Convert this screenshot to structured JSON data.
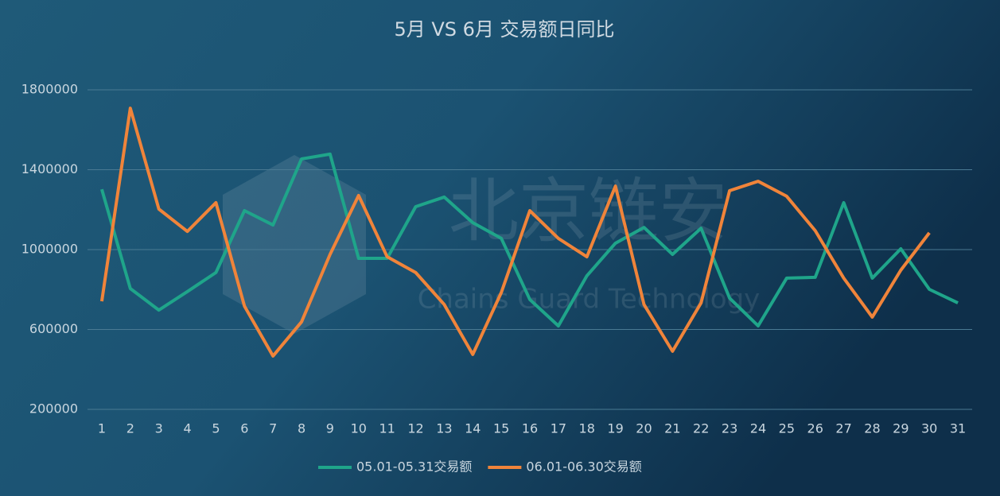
{
  "chart_data": {
    "type": "line",
    "title": "5月 VS 6月 交易额日同比",
    "watermark": {
      "text": "北京链安",
      "subtext": "Chains Guard Technology"
    },
    "categories": [
      "1",
      "2",
      "3",
      "4",
      "5",
      "6",
      "7",
      "8",
      "9",
      "10",
      "11",
      "12",
      "13",
      "14",
      "15",
      "16",
      "17",
      "18",
      "19",
      "20",
      "21",
      "22",
      "23",
      "24",
      "25",
      "26",
      "27",
      "28",
      "29",
      "30",
      "31"
    ],
    "series": [
      {
        "name": "05.01-05.31交易额",
        "color": "#1fa58a",
        "values": [
          1302000,
          805000,
          697000,
          790000,
          885000,
          1195000,
          1123000,
          1454000,
          1478000,
          956000,
          956000,
          1215000,
          1263000,
          1135000,
          1056000,
          750000,
          618000,
          869000,
          1032000,
          1111000,
          976000,
          1107000,
          757000,
          618000,
          857000,
          861000,
          1235000,
          857000,
          1004000,
          801000,
          733000
        ]
      },
      {
        "name": "06.01-06.30交易额",
        "color": "#f0843a",
        "values": [
          741000,
          1708000,
          1203000,
          1091000,
          1235000,
          717000,
          467000,
          638000,
          976000,
          1271000,
          964000,
          885000,
          725000,
          475000,
          785000,
          1195000,
          1056000,
          964000,
          1318000,
          725000,
          491000,
          733000,
          1295000,
          1342000,
          1267000,
          1095000,
          857000,
          662000,
          897000,
          1084000,
          null
        ]
      }
    ],
    "ylim": [
      200000,
      1800000
    ],
    "yticks": [
      200000,
      600000,
      1000000,
      1400000,
      1800000
    ],
    "grid": true,
    "legend": "bottom"
  }
}
